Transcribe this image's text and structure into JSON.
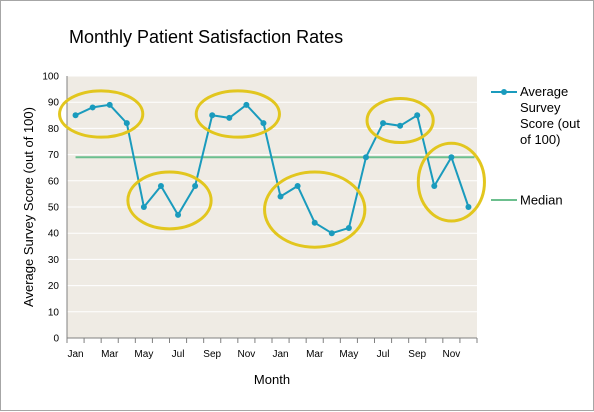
{
  "chart_data": {
    "type": "line",
    "title": "Monthly Patient Satisfaction Rates",
    "xlabel": "Month",
    "ylabel": "Average Survey Score (out of 100)",
    "ylim": [
      0,
      100
    ],
    "yticks": [
      0,
      10,
      20,
      30,
      40,
      50,
      60,
      70,
      80,
      90,
      100
    ],
    "x_tick_labels": [
      "Jan",
      "Mar",
      "May",
      "Jul",
      "Sep",
      "Nov",
      "Jan",
      "Mar",
      "May",
      "Jul",
      "Sep",
      "Nov"
    ],
    "grid": true,
    "legend_position": "right",
    "series": [
      {
        "name": "Average Survey Score (out of 100)",
        "legend_lines": [
          "Average",
          "Survey",
          "Score (out",
          "of 100)"
        ],
        "color": "#1a9bbd",
        "values": [
          85,
          88,
          89,
          82,
          50,
          58,
          47,
          58,
          85,
          84,
          89,
          82,
          54,
          58,
          44,
          40,
          42,
          69,
          82,
          81,
          85,
          58,
          69,
          50
        ]
      },
      {
        "name": "Median",
        "color": "#6cbf8e",
        "values": [
          69
        ]
      }
    ],
    "highlight_color": "#e2c61e",
    "plot_background": "#efebe4"
  }
}
